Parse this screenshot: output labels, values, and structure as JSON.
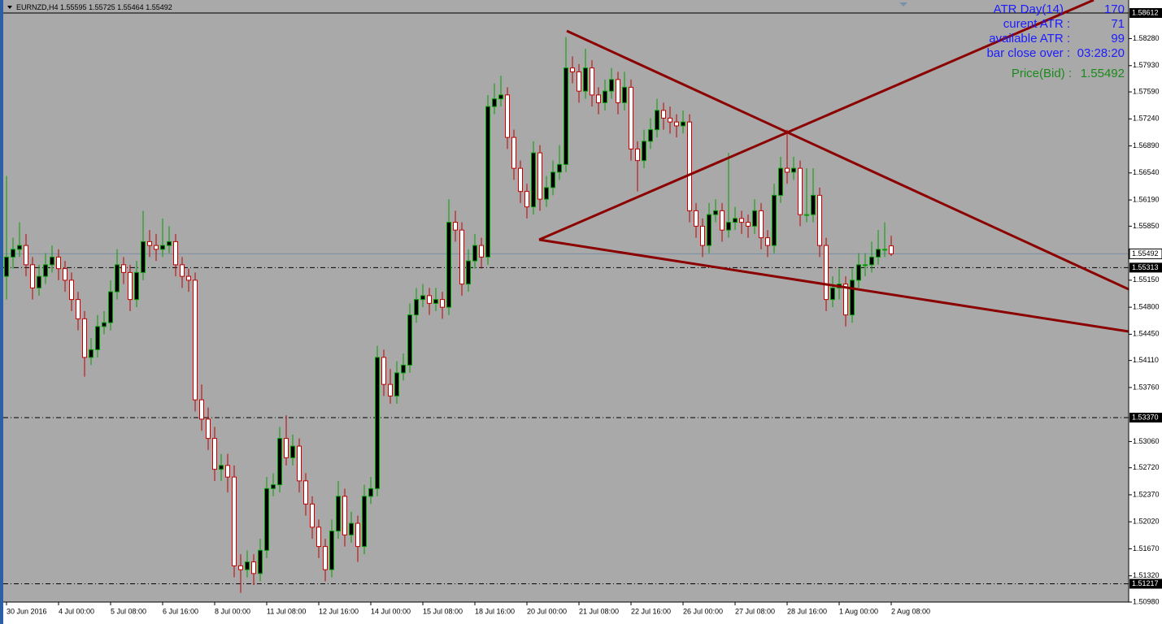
{
  "chart_data": {
    "type": "candlestick",
    "title": "EURNZD,H4",
    "quote": [
      1.55595,
      1.55725,
      1.55464,
      1.55492
    ],
    "xlim": [
      -1,
      172.125
    ],
    "ylim": [
      1.5098,
      1.58612
    ],
    "xticks": [
      {
        "value": 0,
        "label": "30 Jun 2016"
      },
      {
        "value": 8,
        "label": "4 Jul 00:00"
      },
      {
        "value": 16,
        "label": "5 Jul 08:00"
      },
      {
        "value": 24,
        "label": "6 Jul 16:00"
      },
      {
        "value": 32,
        "label": "8 Jul 00:00"
      },
      {
        "value": 40,
        "label": "11 Jul 08:00"
      },
      {
        "value": 48,
        "label": "12 Jul 16:00"
      },
      {
        "value": 56,
        "label": "14 Jul 00:00"
      },
      {
        "value": 64,
        "label": "15 Jul 08:00"
      },
      {
        "value": 72,
        "label": "18 Jul 16:00"
      },
      {
        "value": 80,
        "label": "20 Jul 00:00"
      },
      {
        "value": 88,
        "label": "21 Jul 08:00"
      },
      {
        "value": 96,
        "label": "22 Jul 16:00"
      },
      {
        "value": 104,
        "label": "26 Jul 00:00"
      },
      {
        "value": 112,
        "label": "27 Jul 08:00"
      },
      {
        "value": 120,
        "label": "28 Jul 16:00"
      },
      {
        "value": 128,
        "label": "1 Aug 00:00"
      },
      {
        "value": 136,
        "label": "2 Aug 08:00"
      }
    ],
    "yticks": [
      {
        "value": 1.5828,
        "label": "1.58280"
      },
      {
        "value": 1.5793,
        "label": "1.57930"
      },
      {
        "value": 1.5759,
        "label": "1.57590"
      },
      {
        "value": 1.5724,
        "label": "1.57240"
      },
      {
        "value": 1.5689,
        "label": "1.56890"
      },
      {
        "value": 1.5654,
        "label": "1.56540"
      },
      {
        "value": 1.5619,
        "label": "1.56190"
      },
      {
        "value": 1.5585,
        "label": "1.55850"
      },
      {
        "value": 1.5515,
        "label": "1.55150"
      },
      {
        "value": 1.548,
        "label": "1.54800"
      },
      {
        "value": 1.5445,
        "label": "1.54450"
      },
      {
        "value": 1.5411,
        "label": "1.54110"
      },
      {
        "value": 1.5376,
        "label": "1.53760"
      },
      {
        "value": 1.5306,
        "label": "1.53060"
      },
      {
        "value": 1.5272,
        "label": "1.52720"
      },
      {
        "value": 1.5237,
        "label": "1.52370"
      },
      {
        "value": 1.5202,
        "label": "1.52020"
      },
      {
        "value": 1.5167,
        "label": "1.51670"
      },
      {
        "value": 1.5132,
        "label": "1.51320"
      },
      {
        "value": 1.5098,
        "label": "1.50980"
      }
    ],
    "levels": [
      {
        "value": 1.58612,
        "label": "1.58612"
      },
      {
        "value": 1.55313,
        "label": "1.55313"
      },
      {
        "value": 1.5337,
        "label": "1.53370"
      },
      {
        "value": 1.51217,
        "label": "1.51217"
      }
    ],
    "bid": 1.55492,
    "up_color": "#000000",
    "down_color": "#ffffff",
    "ohlc": [
      [
        1.552,
        1.565,
        1.549,
        1.5545
      ],
      [
        1.5545,
        1.557,
        1.553,
        1.5555
      ],
      [
        1.5555,
        1.559,
        1.5545,
        1.556
      ],
      [
        1.556,
        1.5575,
        1.552,
        1.5535
      ],
      [
        1.5535,
        1.5545,
        1.549,
        1.5505
      ],
      [
        1.5505,
        1.5535,
        1.5495,
        1.552
      ],
      [
        1.552,
        1.555,
        1.551,
        1.5535
      ],
      [
        1.5535,
        1.556,
        1.5525,
        1.5545
      ],
      [
        1.5545,
        1.5555,
        1.5515,
        1.553
      ],
      [
        1.553,
        1.554,
        1.55,
        1.5515
      ],
      [
        1.5515,
        1.5525,
        1.5475,
        1.549
      ],
      [
        1.549,
        1.55,
        1.545,
        1.5465
      ],
      [
        1.5465,
        1.5475,
        1.539,
        1.5415
      ],
      [
        1.5415,
        1.544,
        1.5405,
        1.5425
      ],
      [
        1.5425,
        1.547,
        1.5415,
        1.5455
      ],
      [
        1.5455,
        1.5475,
        1.5445,
        1.546
      ],
      [
        1.546,
        1.5515,
        1.545,
        1.55
      ],
      [
        1.55,
        1.5555,
        1.549,
        1.5535
      ],
      [
        1.5535,
        1.5545,
        1.551,
        1.5525
      ],
      [
        1.5525,
        1.5535,
        1.5475,
        1.549
      ],
      [
        1.549,
        1.554,
        1.548,
        1.5525
      ],
      [
        1.5525,
        1.5605,
        1.5515,
        1.5565
      ],
      [
        1.5565,
        1.558,
        1.5545,
        1.556
      ],
      [
        1.556,
        1.5575,
        1.554,
        1.5555
      ],
      [
        1.5555,
        1.5595,
        1.5545,
        1.556
      ],
      [
        1.556,
        1.5585,
        1.555,
        1.5565
      ],
      [
        1.5565,
        1.5575,
        1.552,
        1.5535
      ],
      [
        1.5535,
        1.5545,
        1.5505,
        1.552
      ],
      [
        1.552,
        1.553,
        1.55,
        1.5515
      ],
      [
        1.5515,
        1.5525,
        1.5345,
        1.536
      ],
      [
        1.536,
        1.538,
        1.532,
        1.5335
      ],
      [
        1.5335,
        1.535,
        1.5295,
        1.531
      ],
      [
        1.531,
        1.5325,
        1.5255,
        1.527
      ],
      [
        1.527,
        1.529,
        1.5255,
        1.5275
      ],
      [
        1.5275,
        1.529,
        1.524,
        1.526
      ],
      [
        1.526,
        1.5275,
        1.513,
        1.5145
      ],
      [
        1.5145,
        1.516,
        1.511,
        1.514
      ],
      [
        1.514,
        1.5165,
        1.513,
        1.515
      ],
      [
        1.515,
        1.516,
        1.512,
        1.5135
      ],
      [
        1.5135,
        1.518,
        1.5125,
        1.5165
      ],
      [
        1.5165,
        1.526,
        1.5155,
        1.5245
      ],
      [
        1.5245,
        1.5265,
        1.5235,
        1.525
      ],
      [
        1.525,
        1.5325,
        1.524,
        1.531
      ],
      [
        1.531,
        1.534,
        1.5275,
        1.5285
      ],
      [
        1.5285,
        1.5315,
        1.5275,
        1.53
      ],
      [
        1.53,
        1.531,
        1.524,
        1.5255
      ],
      [
        1.5255,
        1.5265,
        1.521,
        1.5225
      ],
      [
        1.5225,
        1.5235,
        1.518,
        1.5195
      ],
      [
        1.5195,
        1.5205,
        1.5155,
        1.517
      ],
      [
        1.517,
        1.518,
        1.5125,
        1.514
      ],
      [
        1.514,
        1.5205,
        1.513,
        1.519
      ],
      [
        1.519,
        1.5255,
        1.518,
        1.5235
      ],
      [
        1.5235,
        1.5245,
        1.517,
        1.5185
      ],
      [
        1.5185,
        1.5215,
        1.5175,
        1.52
      ],
      [
        1.52,
        1.521,
        1.515,
        1.517
      ],
      [
        1.517,
        1.525,
        1.516,
        1.5235
      ],
      [
        1.5235,
        1.526,
        1.5225,
        1.5245
      ],
      [
        1.5245,
        1.543,
        1.5235,
        1.5415
      ],
      [
        1.5415,
        1.5425,
        1.5365,
        1.538
      ],
      [
        1.538,
        1.54,
        1.5355,
        1.5365
      ],
      [
        1.5365,
        1.541,
        1.5355,
        1.5395
      ],
      [
        1.5395,
        1.542,
        1.5385,
        1.5405
      ],
      [
        1.5405,
        1.5485,
        1.5395,
        1.547
      ],
      [
        1.547,
        1.5505,
        1.546,
        1.549
      ],
      [
        1.549,
        1.551,
        1.548,
        1.5495
      ],
      [
        1.5495,
        1.5505,
        1.547,
        1.5485
      ],
      [
        1.5485,
        1.5505,
        1.5475,
        1.549
      ],
      [
        1.549,
        1.55,
        1.5465,
        1.548
      ],
      [
        1.548,
        1.562,
        1.547,
        1.559
      ],
      [
        1.559,
        1.5605,
        1.5565,
        1.558
      ],
      [
        1.558,
        1.559,
        1.5495,
        1.551
      ],
      [
        1.551,
        1.5555,
        1.55,
        1.554
      ],
      [
        1.554,
        1.5575,
        1.553,
        1.556
      ],
      [
        1.556,
        1.557,
        1.553,
        1.5545
      ],
      [
        1.5545,
        1.5755,
        1.5535,
        1.574
      ],
      [
        1.574,
        1.577,
        1.573,
        1.575
      ],
      [
        1.575,
        1.578,
        1.574,
        1.5755
      ],
      [
        1.5755,
        1.5765,
        1.5685,
        1.57
      ],
      [
        1.57,
        1.571,
        1.5645,
        1.566
      ],
      [
        1.566,
        1.567,
        1.5615,
        1.563
      ],
      [
        1.563,
        1.564,
        1.5595,
        1.561
      ],
      [
        1.561,
        1.5695,
        1.56,
        1.568
      ],
      [
        1.568,
        1.569,
        1.5605,
        1.562
      ],
      [
        1.562,
        1.565,
        1.561,
        1.5635
      ],
      [
        1.5635,
        1.567,
        1.5625,
        1.5655
      ],
      [
        1.5655,
        1.569,
        1.5645,
        1.5665
      ],
      [
        1.5665,
        1.583,
        1.5655,
        1.579
      ],
      [
        1.579,
        1.5805,
        1.577,
        1.5785
      ],
      [
        1.5785,
        1.5795,
        1.5745,
        1.576
      ],
      [
        1.576,
        1.5815,
        1.575,
        1.579
      ],
      [
        1.579,
        1.58,
        1.574,
        1.5755
      ],
      [
        1.5755,
        1.5765,
        1.573,
        1.5745
      ],
      [
        1.5745,
        1.5775,
        1.5735,
        1.576
      ],
      [
        1.576,
        1.579,
        1.575,
        1.5775
      ],
      [
        1.5775,
        1.5785,
        1.573,
        1.5745
      ],
      [
        1.5745,
        1.5785,
        1.5735,
        1.5765
      ],
      [
        1.5765,
        1.5775,
        1.567,
        1.5685
      ],
      [
        1.5685,
        1.5695,
        1.563,
        1.567
      ],
      [
        1.567,
        1.571,
        1.566,
        1.5695
      ],
      [
        1.5695,
        1.5725,
        1.5685,
        1.571
      ],
      [
        1.571,
        1.575,
        1.57,
        1.5735
      ],
      [
        1.5735,
        1.5745,
        1.571,
        1.5725
      ],
      [
        1.5725,
        1.574,
        1.5705,
        1.572
      ],
      [
        1.572,
        1.573,
        1.57,
        1.5715
      ],
      [
        1.5715,
        1.5735,
        1.5705,
        1.572
      ],
      [
        1.572,
        1.573,
        1.559,
        1.5605
      ],
      [
        1.5605,
        1.5615,
        1.557,
        1.5585
      ],
      [
        1.5585,
        1.5595,
        1.5545,
        1.556
      ],
      [
        1.556,
        1.5615,
        1.555,
        1.56
      ],
      [
        1.56,
        1.562,
        1.559,
        1.5605
      ],
      [
        1.5605,
        1.5615,
        1.5565,
        1.558
      ],
      [
        1.558,
        1.568,
        1.557,
        1.559
      ],
      [
        1.559,
        1.561,
        1.558,
        1.5595
      ],
      [
        1.5595,
        1.5605,
        1.5575,
        1.559
      ],
      [
        1.559,
        1.56,
        1.557,
        1.5585
      ],
      [
        1.5585,
        1.562,
        1.5575,
        1.5605
      ],
      [
        1.5605,
        1.5615,
        1.5555,
        1.557
      ],
      [
        1.557,
        1.558,
        1.5545,
        1.556
      ],
      [
        1.556,
        1.564,
        1.555,
        1.5625
      ],
      [
        1.5625,
        1.5675,
        1.5615,
        1.566
      ],
      [
        1.566,
        1.571,
        1.564,
        1.5655
      ],
      [
        1.5655,
        1.5675,
        1.5645,
        1.566
      ],
      [
        1.566,
        1.567,
        1.5585,
        1.56
      ],
      [
        1.56,
        1.566,
        1.559,
        1.56
      ],
      [
        1.56,
        1.566,
        1.559,
        1.5625
      ],
      [
        1.5625,
        1.5635,
        1.5545,
        1.556
      ],
      [
        1.556,
        1.557,
        1.5475,
        1.549
      ],
      [
        1.549,
        1.552,
        1.548,
        1.5505
      ],
      [
        1.5505,
        1.553,
        1.549,
        1.551
      ],
      [
        1.551,
        1.552,
        1.5455,
        1.547
      ],
      [
        1.547,
        1.553,
        1.546,
        1.5515
      ],
      [
        1.5515,
        1.555,
        1.5505,
        1.5535
      ],
      [
        1.5535,
        1.555,
        1.552,
        1.5535
      ],
      [
        1.5535,
        1.5565,
        1.5525,
        1.5545
      ],
      [
        1.5545,
        1.558,
        1.5535,
        1.5555
      ],
      [
        1.5555,
        1.559,
        1.5545,
        1.5555
      ],
      [
        1.55595,
        1.55725,
        1.55464,
        1.55492
      ]
    ],
    "indicator": {
      "rows": [
        [
          "ATR Day(14)",
          170
        ],
        [
          "curent ATR :",
          71
        ],
        [
          "available ATR :",
          99
        ],
        [
          "bar close over :",
          "03:28:20"
        ]
      ],
      "price_label": "Price(Bid) :",
      "price": {
        "value": 1.55492,
        "label": "1.55492"
      }
    }
  }
}
